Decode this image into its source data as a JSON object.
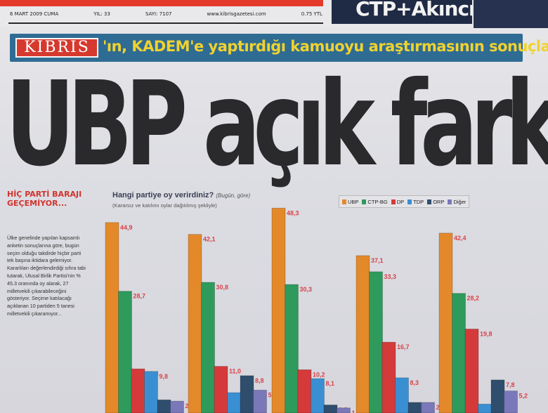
{
  "masthead": {
    "date": "6 MART 2009 CUMA",
    "year": "YIL: 33",
    "issue": "SAYI: 7107",
    "website": "www.kibrisgazetesi.com",
    "price": "0.75 YTL"
  },
  "promo": {
    "text": "CTP+Akıncı"
  },
  "band": {
    "logo": "KIBRIS",
    "text": "'ın, KADEM'e yaptırdığı kamuoyu araştırmasının sonuçları..."
  },
  "headline": "UBP açık farkla önde",
  "left_column": {
    "title": "HİÇ PARTİ BARAJI GEÇEMİYOR...",
    "body": "Ülke genelinde yapılan kapsamlı anketin sonuçlarına göre, bugün seçim olduğu takdirde hiçbir parti tek başına iktidara gelemiyor. Kararlıları değerlendirdiği sıfıra tabi tutarak, Ulusal Birlik Partisi'nin % 45.3 oranında oy alarak, 27 milletvekili çıkarabileceğini gösteriyor. Seçime katılacağı açıklanan 10 partiden 5 tanesi milletvekili çıkaramıyor..."
  },
  "colors": {
    "ubp": "#e4892a",
    "ctp": "#2e9a5c",
    "dp": "#d53a3a",
    "tdp": "#3a8fd3",
    "orp": "#2f4e6e",
    "diger": "#7a78b8"
  },
  "chart_data": {
    "type": "bar",
    "title": "Hangi partiye oy verirdiniz?",
    "title_note": "(Bugün, göre)",
    "subtitle": "(Kararsız ve katılımı oylar dağıtılmış şekliyle)",
    "ylim": [
      0,
      50
    ],
    "groups": 5,
    "series": [
      {
        "name": "UBP",
        "values": [
          44.9,
          42.1,
          48.3,
          37.1,
          42.4
        ]
      },
      {
        "name": "CTP-BG",
        "values": [
          28.7,
          30.8,
          30.3,
          33.3,
          28.2
        ]
      },
      {
        "name": "DP",
        "values": [
          10.4,
          11.0,
          10.2,
          16.7,
          19.8
        ]
      },
      {
        "name": "TDP",
        "values": [
          9.8,
          4.8,
          8.1,
          8.3,
          2.1
        ]
      },
      {
        "name": "ORP",
        "values": [
          3.1,
          8.8,
          1.9,
          2.5,
          7.8
        ]
      },
      {
        "name": "Diğer",
        "values": [
          2.8,
          5.4,
          1.2,
          2.5,
          5.2
        ]
      }
    ],
    "data_labels": [
      [
        "44,9",
        "28,7",
        "10,4",
        "9,8",
        "3,1",
        "2,8"
      ],
      [
        "42,1",
        "30,8",
        "11,0",
        "4,8",
        "8,8",
        "5,4"
      ],
      [
        "48,3",
        "30,3",
        "10,2",
        "8,1",
        "1,9",
        "1,2"
      ],
      [
        "37,1",
        "33,3",
        "16,7",
        "8,3",
        "2,5",
        "2,5"
      ],
      [
        "42,4",
        "28,2",
        "19,8",
        "2,1",
        "7,8",
        "5,2"
      ]
    ]
  }
}
